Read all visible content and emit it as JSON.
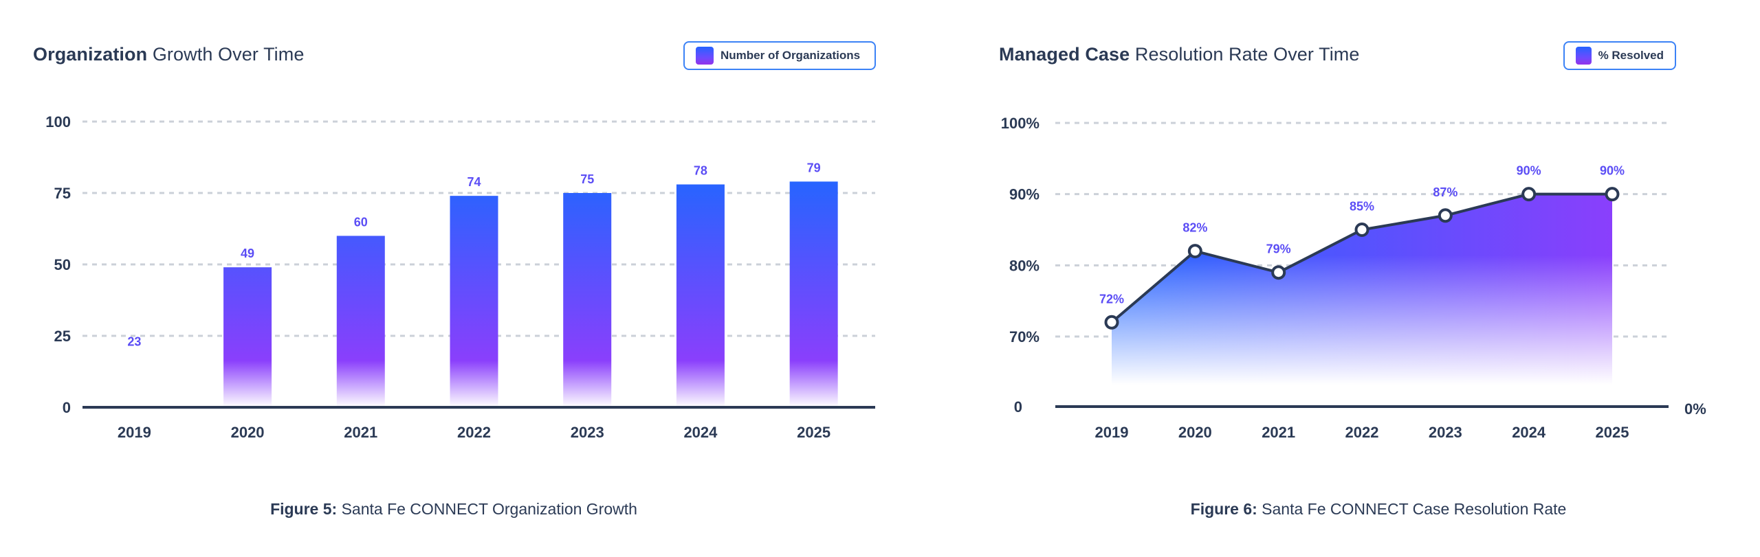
{
  "colors": {
    "text": "#2B3A55",
    "data_label": "#5B4DF5",
    "grid": "#CBD0D8",
    "axis": "#2B3A55",
    "legend_border": "#3B82F6",
    "gradient_top": "#2266FF",
    "gradient_mid": "#8A3FFC",
    "gradient_bottom": "#FFFFFF"
  },
  "left": {
    "title_bold": "Organization",
    "title_rest": " Growth Over Time",
    "legend_label": "Number of Organizations",
    "caption_bold": "Figure 5:",
    "caption_rest": " Santa Fe CONNECT Organization Growth"
  },
  "right": {
    "title_bold": "Managed Case",
    "title_rest": " Resolution Rate Over Time",
    "legend_label": "% Resolved",
    "caption_bold": "Figure 6:",
    "caption_rest": " Santa Fe CONNECT Case Resolution Rate"
  },
  "chart_data": [
    {
      "type": "bar",
      "title": "Organization Growth Over Time",
      "xlabel": "",
      "ylabel": "",
      "categories": [
        "2019",
        "2020",
        "2021",
        "2022",
        "2023",
        "2024",
        "2025"
      ],
      "series": [
        {
          "name": "Number of Organizations",
          "values": [
            23,
            49,
            60,
            74,
            75,
            78,
            79
          ],
          "bar_drawn": [
            false,
            true,
            true,
            true,
            true,
            true,
            true
          ]
        }
      ],
      "data_labels": [
        "23",
        "49",
        "60",
        "74",
        "75",
        "78",
        "79"
      ],
      "ylim": [
        0,
        100
      ],
      "yticks": [
        0,
        25,
        50,
        75,
        100
      ],
      "ytick_labels": [
        "0",
        "25",
        "50",
        "75",
        "100"
      ],
      "grid": true,
      "legend_position": "top-right"
    },
    {
      "type": "area",
      "title": "Managed Case Resolution Rate Over Time",
      "xlabel": "",
      "ylabel": "",
      "categories": [
        "2019",
        "2020",
        "2021",
        "2022",
        "2023",
        "2024",
        "2025"
      ],
      "series": [
        {
          "name": "% Resolved",
          "values": [
            72,
            82,
            79,
            85,
            87,
            90,
            90
          ]
        }
      ],
      "data_labels": [
        "72%",
        "82%",
        "79%",
        "85%",
        "87%",
        "90%",
        "90%"
      ],
      "ylim": [
        0,
        100
      ],
      "axis_break": true,
      "yticks": [
        0,
        70,
        80,
        90,
        100
      ],
      "ytick_labels": [
        "0",
        "70%",
        "80%",
        "90%",
        "100%"
      ],
      "right_axis_label": "0%",
      "grid": true,
      "legend_position": "top-right"
    }
  ]
}
